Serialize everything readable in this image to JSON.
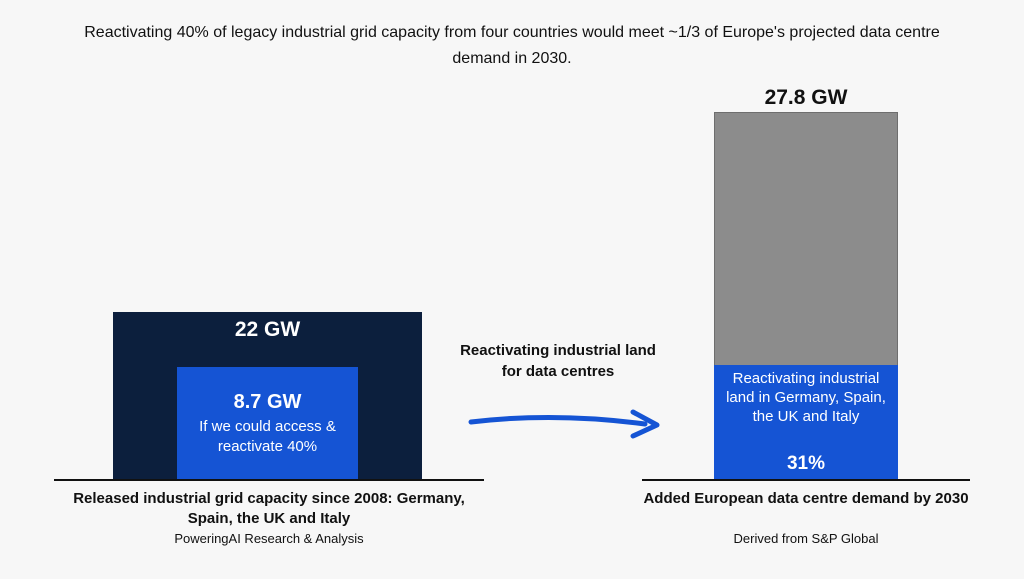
{
  "title": "Reactivating 40% of legacy industrial grid capacity from four countries would meet ~1/3 of Europe's projected data centre demand in 2030.",
  "chart_data": {
    "type": "bar",
    "left_panel": {
      "outer": {
        "label": "22 GW",
        "value": 22
      },
      "inner": {
        "label": "8.7 GW",
        "value": 8.7,
        "description": "If we could access & reactivate 40%"
      },
      "caption": "Released industrial grid capacity since 2008: Germany, Spain, the UK and Italy",
      "source": "PoweringAI Research & Analysis"
    },
    "arrow_label": "Reactivating industrial land for data centres",
    "right_panel": {
      "total_label": "27.8 GW",
      "total_value": 27.8,
      "share_fraction": 0.31,
      "share_label": "31%",
      "share_description": "Reactivating industrial land in Germany, Spain, the UK and Italy",
      "caption": "Added European data centre demand by 2030",
      "source": "Derived from S&P Global"
    },
    "colors": {
      "outer_box": "#0c1f3d",
      "inner_box": "#1554d4",
      "bar_total": "#8c8c8c",
      "bar_share": "#1554d4",
      "arrow": "#1554d4"
    }
  }
}
